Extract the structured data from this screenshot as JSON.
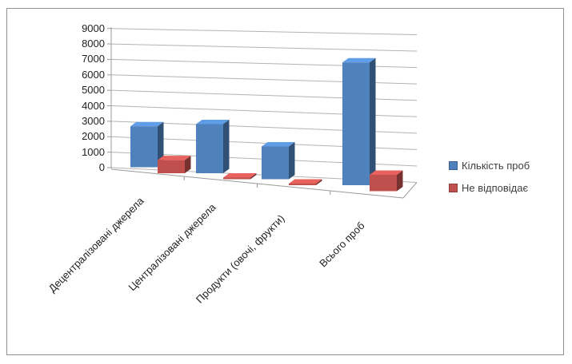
{
  "chart_data": {
    "type": "bar",
    "projection": "3d-clustered-column",
    "title": "",
    "xlabel": "",
    "ylabel": "",
    "categories": [
      "Децентралізовані джерела",
      "Централізовані джерела",
      "Продукти (овочі, фрукти)",
      "Всього проб"
    ],
    "series": [
      {
        "name": "Кількість проб",
        "color": "#4F81BD",
        "values": [
          2500,
          3000,
          2000,
          7500
        ]
      },
      {
        "name": "Не відповідає",
        "color": "#C0504D",
        "values": [
          800,
          100,
          100,
          1000
        ]
      }
    ],
    "ylim": [
      0,
      9000
    ],
    "ytick_step": 1000,
    "ytick_labels": [
      "0",
      "1000",
      "2000",
      "3000",
      "4000",
      "5000",
      "6000",
      "7000",
      "8000",
      "9000"
    ],
    "grid": true,
    "legend_position": "right",
    "axis_color": "#9a9a9a",
    "gridline_color": "#b3b3b3"
  }
}
